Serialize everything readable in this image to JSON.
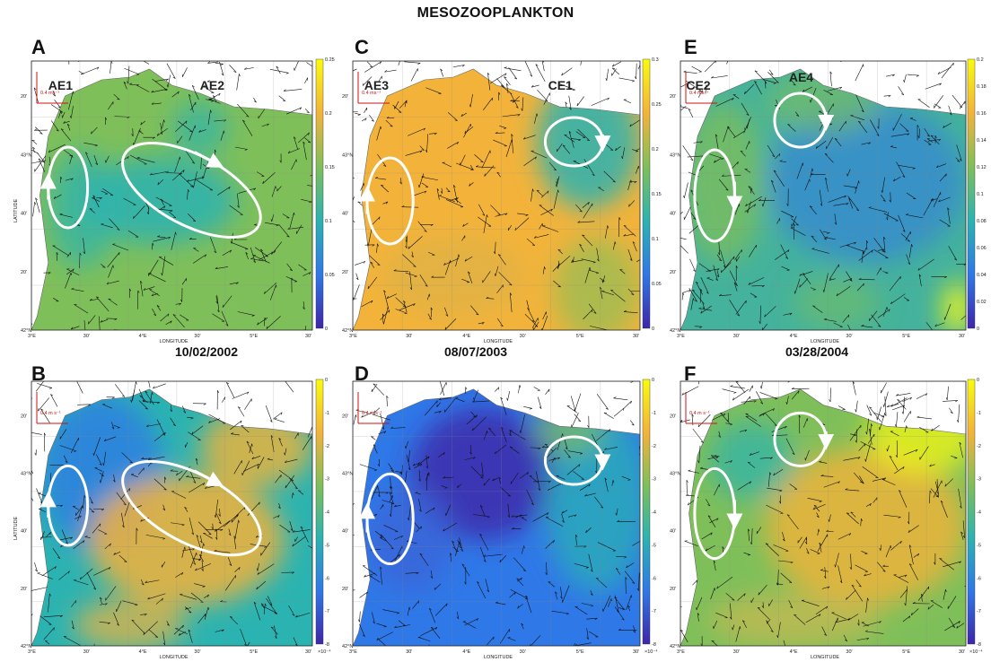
{
  "title": "MESOZOOPLANKTON",
  "xlabel": "LONGITUDE",
  "ylabel": "LATITUDE",
  "lon_ticks": [
    "3°E",
    "30'",
    "4°E",
    "30'",
    "5°E",
    "30'"
  ],
  "lat_ticks": [
    "42°N",
    "20'",
    "40'",
    "43°N",
    "20'"
  ],
  "scale_top": "0.4 ms⁻¹",
  "scale_bottom": "0.4 m s⁻¹",
  "exponent": "×10⁻⁴",
  "dates": [
    "10/02/2002",
    "08/07/2003",
    "03/28/2004"
  ],
  "colors": {
    "dark_blue": "#3e26a8",
    "blue": "#2f78e8",
    "teal": "#2bb3b1",
    "green": "#7fbf5a",
    "orange": "#f3b33a",
    "yellow": "#f9fb0e"
  },
  "chart_data": [
    {
      "type": "heatmap",
      "panel": "A",
      "colorbar_ticks": [
        "0.25",
        "0.2",
        "0.15",
        "0.1",
        "0.05",
        "0"
      ],
      "clim": [
        0,
        0.25
      ],
      "eddy_labels": [
        "AE1",
        "AE2"
      ]
    },
    {
      "type": "heatmap",
      "panel": "C",
      "colorbar_ticks": [
        "0.3",
        "0.25",
        "0.2",
        "0.15",
        "0.1",
        "0.05",
        "0"
      ],
      "clim": [
        0,
        0.3
      ],
      "eddy_labels": [
        "AE3",
        "CE1"
      ]
    },
    {
      "type": "heatmap",
      "panel": "E",
      "colorbar_ticks": [
        "0.2",
        "0.18",
        "0.16",
        "0.14",
        "0.12",
        "0.1",
        "0.08",
        "0.06",
        "0.04",
        "0.02",
        "0"
      ],
      "clim": [
        0,
        0.2
      ],
      "eddy_labels": [
        "CE2",
        "AE4"
      ]
    },
    {
      "type": "heatmap",
      "panel": "B",
      "colorbar_ticks": [
        "0",
        "-1",
        "-2",
        "-3",
        "-4",
        "-5",
        "-6",
        "-7",
        "-8"
      ],
      "clim": [
        -8,
        0
      ],
      "eddy_labels": []
    },
    {
      "type": "heatmap",
      "panel": "D",
      "colorbar_ticks": [
        "0",
        "-1",
        "-2",
        "-3",
        "-4",
        "-5",
        "-6",
        "-7",
        "-8"
      ],
      "clim": [
        -8,
        0
      ],
      "eddy_labels": []
    },
    {
      "type": "heatmap",
      "panel": "F",
      "colorbar_ticks": [
        "0",
        "-1",
        "-2",
        "-3",
        "-4",
        "-5",
        "-6",
        "-7",
        "-8"
      ],
      "clim": [
        -8,
        0
      ],
      "eddy_labels": []
    }
  ]
}
